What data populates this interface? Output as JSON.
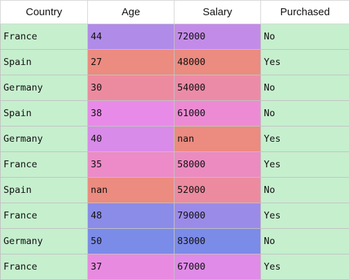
{
  "table": {
    "columns": [
      "Country",
      "Age",
      "Salary",
      "Purchased"
    ],
    "rows": [
      {
        "country": "France",
        "age": "44",
        "salary": "72000",
        "purchased": "No",
        "age_color": "#b18be8",
        "salary_color": "#c38be8"
      },
      {
        "country": "Spain",
        "age": "27",
        "salary": "48000",
        "purchased": "Yes",
        "age_color": "#ec8b80",
        "salary_color": "#ec8b80"
      },
      {
        "country": "Germany",
        "age": "30",
        "salary": "54000",
        "purchased": "No",
        "age_color": "#ec8ba0",
        "salary_color": "#ec8ba8"
      },
      {
        "country": "Spain",
        "age": "38",
        "salary": "61000",
        "purchased": "No",
        "age_color": "#e88be8",
        "salary_color": "#ec8bd4"
      },
      {
        "country": "Germany",
        "age": "40",
        "salary": "nan",
        "purchased": "Yes",
        "age_color": "#d88be8",
        "salary_color": "#ec8b80"
      },
      {
        "country": "France",
        "age": "35",
        "salary": "58000",
        "purchased": "Yes",
        "age_color": "#ec8bc8",
        "salary_color": "#ec8bc0"
      },
      {
        "country": "Spain",
        "age": "nan",
        "salary": "52000",
        "purchased": "No",
        "age_color": "#ec8b80",
        "salary_color": "#ec8ba0"
      },
      {
        "country": "France",
        "age": "48",
        "salary": "79000",
        "purchased": "Yes",
        "age_color": "#8b8be8",
        "salary_color": "#9b8be8"
      },
      {
        "country": "Germany",
        "age": "50",
        "salary": "83000",
        "purchased": "No",
        "age_color": "#7b8be8",
        "salary_color": "#7b8be8"
      },
      {
        "country": "France",
        "age": "37",
        "salary": "67000",
        "purchased": "Yes",
        "age_color": "#e88be0",
        "salary_color": "#e08be8"
      }
    ]
  }
}
